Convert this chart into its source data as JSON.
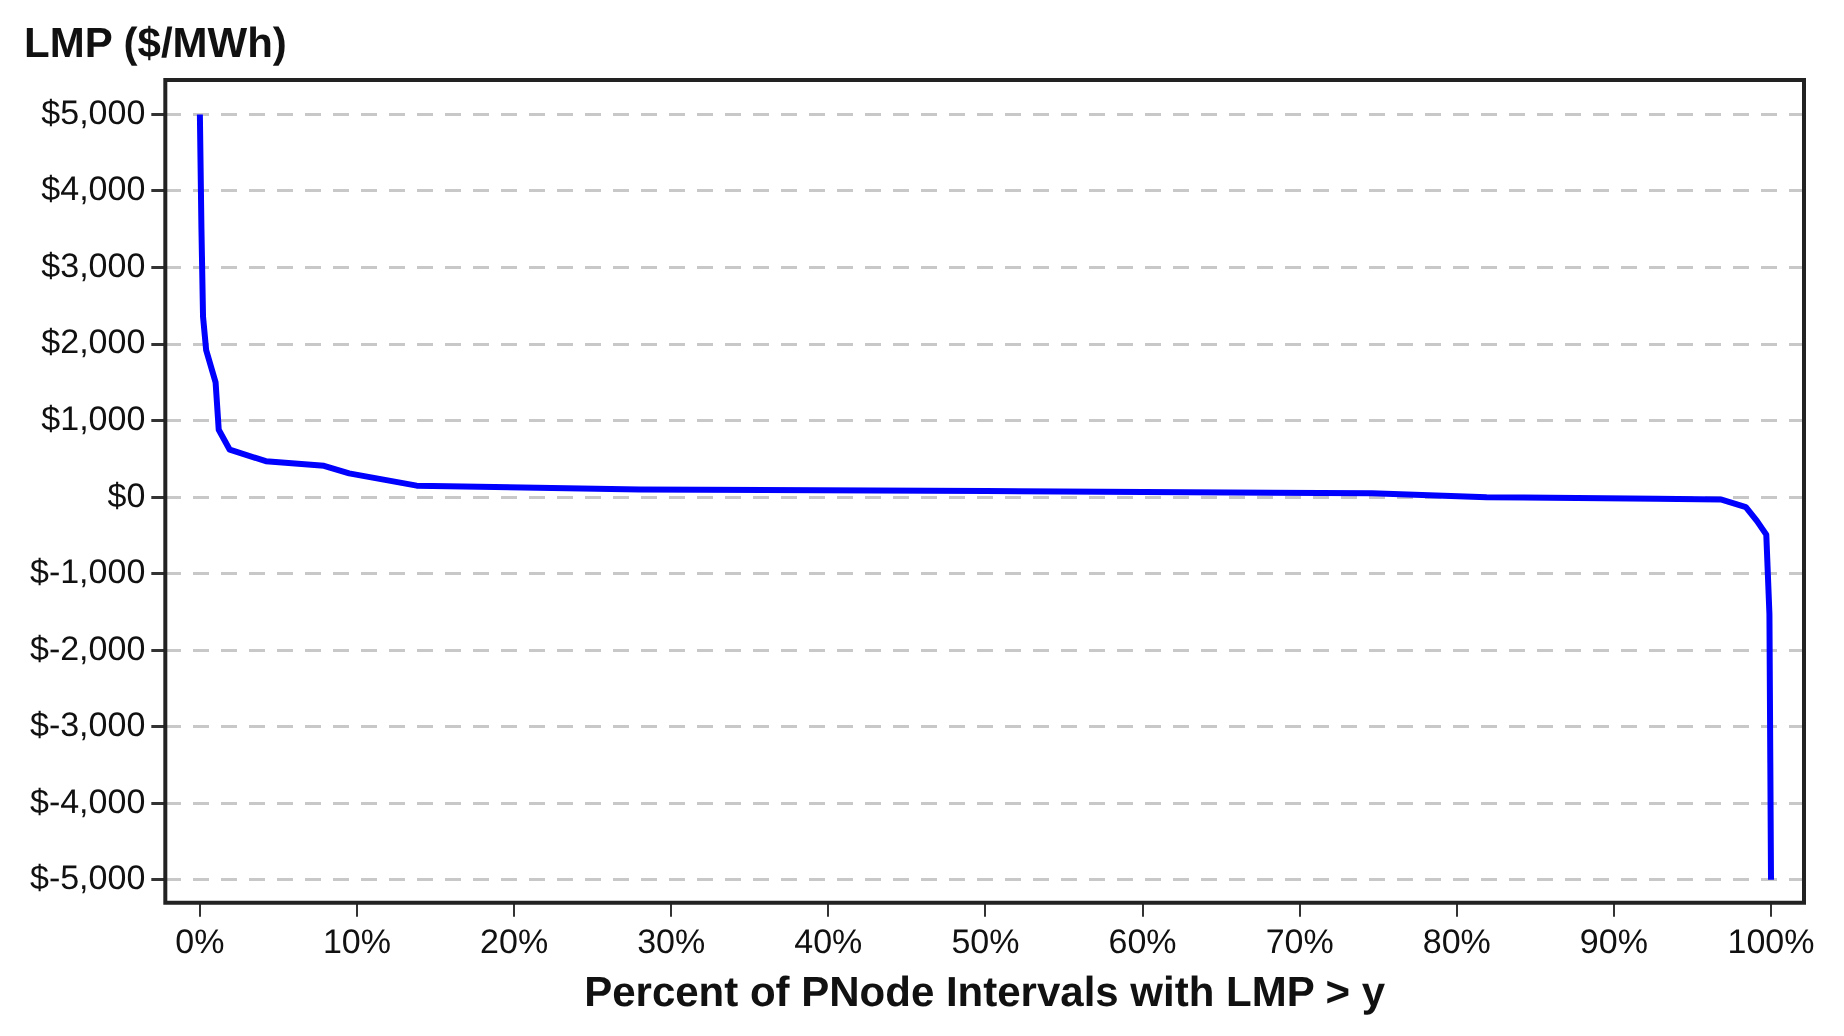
{
  "chart_data": {
    "type": "line",
    "ylabel": "LMP ($/MWh)",
    "xlabel": "Percent of PNode Intervals with LMP > y",
    "x": [
      0,
      0.1,
      0.2,
      0.4,
      1,
      1.2,
      1.9,
      4.2,
      7.9,
      9.5,
      13.8,
      28,
      50,
      74.6,
      81.9,
      92.7,
      96.8,
      98.4,
      99.1,
      99.7,
      99.9,
      100
    ],
    "series": [
      {
        "color": "#0000ff",
        "values": [
          5000,
          3500,
          2360,
          1920,
          1500,
          880,
          620,
          470,
          410,
          310,
          150,
          100,
          80,
          50,
          0,
          -20,
          -30,
          -130,
          -310,
          -490,
          -1530,
          -5000
        ]
      }
    ],
    "xlim": [
      -2.2,
      102.1
    ],
    "ylim": [
      -5300,
      5450
    ],
    "xticks": [
      {
        "value": 0,
        "label": "0%"
      },
      {
        "value": 10,
        "label": "10%"
      },
      {
        "value": 20,
        "label": "20%"
      },
      {
        "value": 30,
        "label": "30%"
      },
      {
        "value": 40,
        "label": "40%"
      },
      {
        "value": 50,
        "label": "50%"
      },
      {
        "value": 60,
        "label": "60%"
      },
      {
        "value": 70,
        "label": "70%"
      },
      {
        "value": 80,
        "label": "80%"
      },
      {
        "value": 90,
        "label": "90%"
      },
      {
        "value": 100,
        "label": "100%"
      }
    ],
    "yticks": [
      {
        "value": 5000,
        "label": "$5,000"
      },
      {
        "value": 4000,
        "label": "$4,000"
      },
      {
        "value": 3000,
        "label": "$3,000"
      },
      {
        "value": 2000,
        "label": "$2,000"
      },
      {
        "value": 1000,
        "label": "$1,000"
      },
      {
        "value": 0,
        "label": "$0"
      },
      {
        "value": -1000,
        "label": "$-1,000"
      },
      {
        "value": -2000,
        "label": "$-2,000"
      },
      {
        "value": -3000,
        "label": "$-3,000"
      },
      {
        "value": -4000,
        "label": "$-4,000"
      },
      {
        "value": -5000,
        "label": "$-5,000"
      }
    ],
    "grid": "y",
    "legend": false,
    "marker": "none",
    "line_style": "solid"
  }
}
